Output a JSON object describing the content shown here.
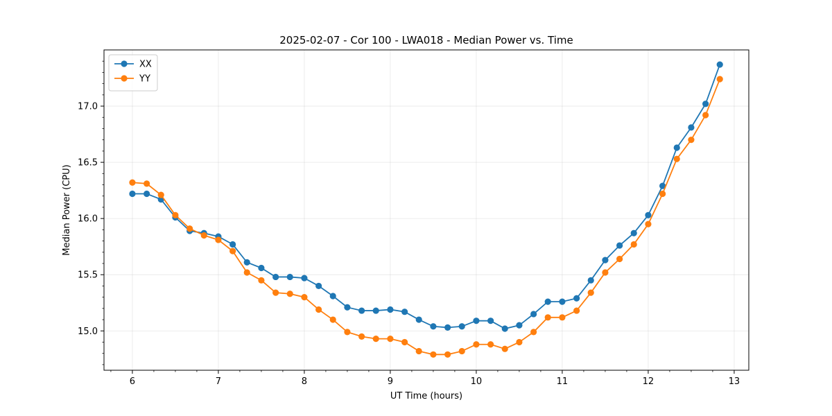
{
  "chart_data": {
    "type": "line",
    "title": "2025-02-07 - Cor 100 - LWA018 - Median Power vs. Time",
    "xlabel": "UT Time (hours)",
    "ylabel": "Median Power (CPU)",
    "xlim": [
      5.67,
      13.17
    ],
    "ylim": [
      14.65,
      17.5
    ],
    "xticks": [
      6,
      7,
      8,
      9,
      10,
      11,
      12,
      13
    ],
    "yticks": [
      15.0,
      15.5,
      16.0,
      16.5,
      17.0
    ],
    "ytick_labels": [
      "15.0",
      "15.5",
      "16.0",
      "16.5",
      "17.0"
    ],
    "grid": true,
    "legend_position": "top-left",
    "x": [
      6.0,
      6.167,
      6.333,
      6.5,
      6.667,
      6.833,
      7.0,
      7.167,
      7.333,
      7.5,
      7.667,
      7.833,
      8.0,
      8.167,
      8.333,
      8.5,
      8.667,
      8.833,
      9.0,
      9.167,
      9.333,
      9.5,
      9.667,
      9.833,
      10.0,
      10.167,
      10.333,
      10.5,
      10.667,
      10.833,
      11.0,
      11.167,
      11.333,
      11.5,
      11.667,
      11.833,
      12.0,
      12.167,
      12.333,
      12.5,
      12.667,
      12.833
    ],
    "series": [
      {
        "name": "XX",
        "color": "#1f77b4",
        "values": [
          16.22,
          16.22,
          16.17,
          16.01,
          15.89,
          15.87,
          15.84,
          15.77,
          15.61,
          15.56,
          15.48,
          15.48,
          15.47,
          15.4,
          15.31,
          15.21,
          15.18,
          15.18,
          15.19,
          15.17,
          15.1,
          15.04,
          15.03,
          15.04,
          15.09,
          15.09,
          15.02,
          15.05,
          15.15,
          15.26,
          15.26,
          15.29,
          15.45,
          15.63,
          15.76,
          15.87,
          16.03,
          16.29,
          16.63,
          16.81,
          17.02,
          17.37
        ]
      },
      {
        "name": "YY",
        "color": "#ff7f0e",
        "values": [
          16.32,
          16.31,
          16.21,
          16.03,
          15.91,
          15.85,
          15.81,
          15.71,
          15.52,
          15.45,
          15.34,
          15.33,
          15.3,
          15.19,
          15.1,
          14.99,
          14.95,
          14.93,
          14.93,
          14.9,
          14.82,
          14.79,
          14.79,
          14.82,
          14.88,
          14.88,
          14.84,
          14.9,
          14.99,
          15.12,
          15.12,
          15.18,
          15.34,
          15.52,
          15.64,
          15.77,
          15.95,
          16.22,
          16.53,
          16.7,
          16.92,
          17.24
        ]
      }
    ]
  }
}
